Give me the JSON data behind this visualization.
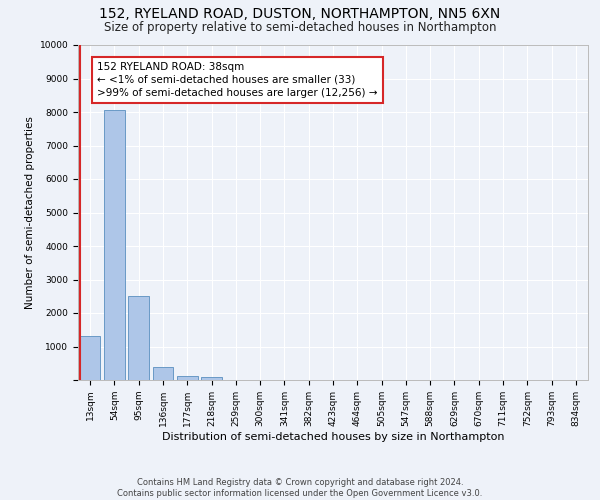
{
  "title": "152, RYELAND ROAD, DUSTON, NORTHAMPTON, NN5 6XN",
  "subtitle": "Size of property relative to semi-detached houses in Northampton",
  "xlabel": "Distribution of semi-detached houses by size in Northampton",
  "ylabel": "Number of semi-detached properties",
  "footer_line1": "Contains HM Land Registry data © Crown copyright and database right 2024.",
  "footer_line2": "Contains public sector information licensed under the Open Government Licence v3.0.",
  "bar_labels": [
    "13sqm",
    "54sqm",
    "95sqm",
    "136sqm",
    "177sqm",
    "218sqm",
    "259sqm",
    "300sqm",
    "341sqm",
    "382sqm",
    "423sqm",
    "464sqm",
    "505sqm",
    "547sqm",
    "588sqm",
    "629sqm",
    "670sqm",
    "711sqm",
    "752sqm",
    "793sqm",
    "834sqm"
  ],
  "bar_values": [
    1300,
    8050,
    2500,
    390,
    130,
    85,
    0,
    0,
    0,
    0,
    0,
    0,
    0,
    0,
    0,
    0,
    0,
    0,
    0,
    0,
    0
  ],
  "bar_color": "#aec6e8",
  "bar_edge_color": "#5a8fc0",
  "highlight_color": "#d62728",
  "annotation_title": "152 RYELAND ROAD: 38sqm",
  "annotation_line1": "← <1% of semi-detached houses are smaller (33)",
  "annotation_line2": ">99% of semi-detached houses are larger (12,256) →",
  "annotation_box_color": "#ffffff",
  "annotation_border_color": "#d62728",
  "ylim": [
    0,
    10000
  ],
  "yticks": [
    0,
    1000,
    2000,
    3000,
    4000,
    5000,
    6000,
    7000,
    8000,
    9000,
    10000
  ],
  "background_color": "#eef2f9",
  "axes_background": "#eef2f9",
  "grid_color": "#ffffff",
  "title_fontsize": 10,
  "subtitle_fontsize": 8.5,
  "xlabel_fontsize": 8,
  "ylabel_fontsize": 7.5,
  "tick_fontsize": 6.5,
  "annotation_fontsize": 7.5,
  "footer_fontsize": 6
}
